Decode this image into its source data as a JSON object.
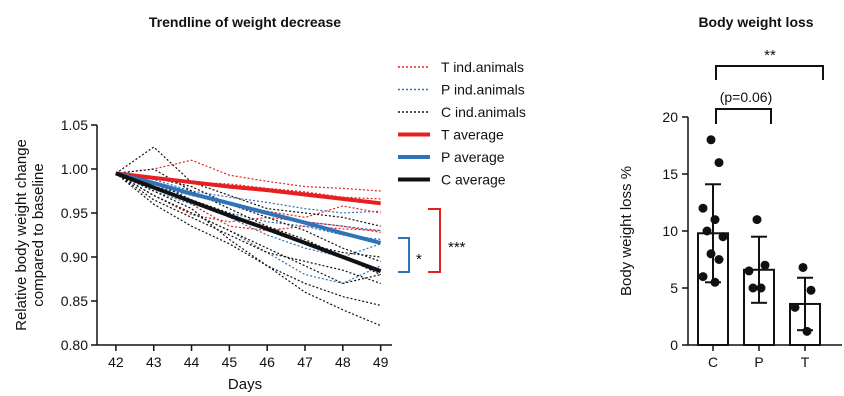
{
  "chart_data": [
    {
      "type": "line",
      "title": "Trendline of weight decrease",
      "xlabel": "Days",
      "ylabel": "Relative body weight change compared to baseline",
      "x": [
        42,
        43,
        44,
        45,
        46,
        47,
        48,
        49
      ],
      "xlim": [
        41.5,
        49.3
      ],
      "ylim": [
        0.8,
        1.05
      ],
      "yticks": [
        "0.80",
        "0.85",
        "0.90",
        "0.95",
        "1.00",
        "1.05"
      ],
      "legend_position": "top-right",
      "colors": {
        "T": "#e62020",
        "P": "#2f73b8",
        "C": "#111111"
      },
      "legend": [
        {
          "key": "T_ind",
          "label": "T ind.animals",
          "style": "dotted",
          "color": "#e62020"
        },
        {
          "key": "P_ind",
          "label": "P ind.animals",
          "style": "dotted",
          "color": "#2f73b8"
        },
        {
          "key": "C_ind",
          "label": "C ind.animals",
          "style": "dotted",
          "color": "#111111"
        },
        {
          "key": "T_avg",
          "label": "T average",
          "style": "solid",
          "color": "#e62020"
        },
        {
          "key": "P_avg",
          "label": "P average",
          "style": "solid",
          "color": "#2f73b8"
        },
        {
          "key": "C_avg",
          "label": "C average",
          "style": "solid",
          "color": "#111111"
        }
      ],
      "averages": [
        {
          "name": "T average",
          "color": "#e62020",
          "values": [
            0.995,
            0.99,
            0.985,
            0.98,
            0.976,
            0.971,
            0.966,
            0.961
          ]
        },
        {
          "name": "P average",
          "color": "#2f73b8",
          "values": [
            0.995,
            0.984,
            0.972,
            0.961,
            0.95,
            0.939,
            0.927,
            0.916
          ]
        },
        {
          "name": "C average",
          "color": "#111111",
          "values": [
            0.995,
            0.979,
            0.963,
            0.947,
            0.932,
            0.916,
            0.9,
            0.884
          ]
        }
      ],
      "individuals": [
        {
          "group": "T",
          "values": [
            0.995,
            1.0,
            1.01,
            0.993,
            0.986,
            0.98,
            0.978,
            0.975
          ]
        },
        {
          "group": "T",
          "values": [
            0.995,
            0.99,
            0.985,
            0.983,
            0.978,
            0.974,
            0.968,
            0.966
          ]
        },
        {
          "group": "T",
          "values": [
            0.995,
            0.98,
            0.972,
            0.96,
            0.952,
            0.945,
            0.958,
            0.95
          ]
        },
        {
          "group": "T",
          "values": [
            0.995,
            0.97,
            0.948,
            0.94,
            0.945,
            0.94,
            0.935,
            0.928
          ]
        },
        {
          "group": "T",
          "values": [
            0.995,
            0.985,
            0.96,
            0.935,
            0.93,
            0.935,
            0.932,
            0.93
          ]
        },
        {
          "group": "P",
          "values": [
            0.995,
            0.988,
            0.975,
            0.968,
            0.962,
            0.955,
            0.95,
            0.952
          ]
        },
        {
          "group": "P",
          "values": [
            0.995,
            0.975,
            0.96,
            0.95,
            0.94,
            0.935,
            0.925,
            0.92
          ]
        },
        {
          "group": "P",
          "values": [
            0.995,
            0.985,
            0.965,
            0.945,
            0.925,
            0.91,
            0.9,
            0.915
          ]
        },
        {
          "group": "P",
          "values": [
            0.995,
            0.97,
            0.95,
            0.93,
            0.905,
            0.88,
            0.87,
            0.89
          ]
        },
        {
          "group": "P",
          "values": [
            0.995,
            0.98,
            0.97,
            0.96,
            0.95,
            0.94,
            0.935,
            0.93
          ]
        },
        {
          "group": "C",
          "values": [
            0.995,
            1.025,
            0.985,
            0.97,
            0.955,
            0.95,
            0.945,
            0.935
          ]
        },
        {
          "group": "C",
          "values": [
            0.995,
            0.985,
            0.965,
            0.95,
            0.93,
            0.915,
            0.905,
            0.9
          ]
        },
        {
          "group": "C",
          "values": [
            0.995,
            0.97,
            0.95,
            0.93,
            0.91,
            0.89,
            0.87,
            0.88
          ]
        },
        {
          "group": "C",
          "values": [
            0.995,
            0.975,
            0.955,
            0.92,
            0.89,
            0.87,
            0.855,
            0.845
          ]
        },
        {
          "group": "C",
          "values": [
            0.995,
            0.96,
            0.935,
            0.915,
            0.89,
            0.86,
            0.84,
            0.822
          ]
        },
        {
          "group": "C",
          "values": [
            0.995,
            0.99,
            0.98,
            0.96,
            0.945,
            0.93,
            0.91,
            0.895
          ]
        },
        {
          "group": "C",
          "values": [
            0.995,
            1.0,
            0.975,
            0.955,
            0.935,
            0.92,
            0.9,
            0.88
          ]
        },
        {
          "group": "C",
          "values": [
            0.995,
            0.965,
            0.945,
            0.925,
            0.905,
            0.895,
            0.885,
            0.87
          ]
        }
      ],
      "annotations": [
        {
          "label": "*",
          "between": [
            "P average",
            "C average"
          ],
          "color": "#2f73b8"
        },
        {
          "label": "***",
          "between": [
            "T average",
            "C average"
          ],
          "color": "#e62020"
        }
      ]
    },
    {
      "type": "bar",
      "title": "Body weight loss",
      "xlabel": "",
      "ylabel": "Body weight loss %",
      "categories": [
        "C",
        "P",
        "T"
      ],
      "values": [
        9.8,
        6.6,
        3.6
      ],
      "error": [
        4.3,
        2.9,
        2.3
      ],
      "ylim": [
        0,
        20
      ],
      "yticks": [
        "0",
        "5",
        "10",
        "15",
        "20"
      ],
      "points": [
        [
          18.0,
          16.0,
          12.0,
          11.0,
          10.0,
          9.5,
          8.0,
          7.5,
          6.0,
          5.5
        ],
        [
          11.0,
          7.0,
          6.5,
          5.0,
          5.0
        ],
        [
          6.8,
          4.8,
          3.3,
          1.2
        ]
      ],
      "comparisons": [
        {
          "from": "C",
          "to": "P",
          "label": "(p=0.06)"
        },
        {
          "from": "C",
          "to": "T",
          "label": "**"
        }
      ]
    }
  ]
}
